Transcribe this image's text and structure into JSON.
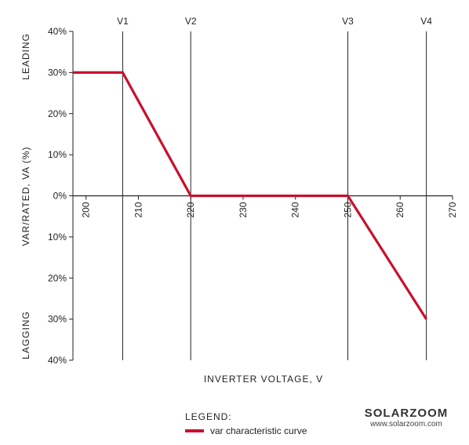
{
  "chart_data": {
    "type": "line",
    "xlabel": "INVERTER VOLTAGE, V",
    "ylabel": "VAR/RATED,  VA (%)",
    "xlim": [
      197.5,
      270
    ],
    "ylim": [
      -40,
      40
    ],
    "x_ticks": [
      200,
      210,
      220,
      230,
      240,
      250,
      260,
      270
    ],
    "x_tick_labels": [
      "200",
      "210",
      "220",
      "230",
      "240",
      "250",
      "260",
      "270"
    ],
    "y_ticks": [
      40,
      30,
      20,
      10,
      0,
      -10,
      -20,
      -30,
      -40
    ],
    "y_tick_labels": [
      "40%",
      "30%",
      "20%",
      "10%",
      "0%",
      "10%",
      "20%",
      "30%",
      "40%"
    ],
    "y_region_labels": {
      "upper": "LEADING",
      "lower": "LAGGING"
    },
    "reference_lines": [
      {
        "label": "V1",
        "x": 207
      },
      {
        "label": "V2",
        "x": 220
      },
      {
        "label": "V3",
        "x": 250
      },
      {
        "label": "V4",
        "x": 265
      }
    ],
    "series": [
      {
        "name": "var characteristic curve",
        "color": "#c8102e",
        "x": [
          197.5,
          207,
          220,
          250,
          265
        ],
        "y": [
          30,
          30,
          0,
          0,
          -30
        ]
      }
    ],
    "legend": {
      "title": "LEGEND:",
      "placement": "bottom-center"
    },
    "grid": false
  },
  "watermark": {
    "logo": "SOLARZOOM",
    "url": "www.solarzoom.com"
  }
}
